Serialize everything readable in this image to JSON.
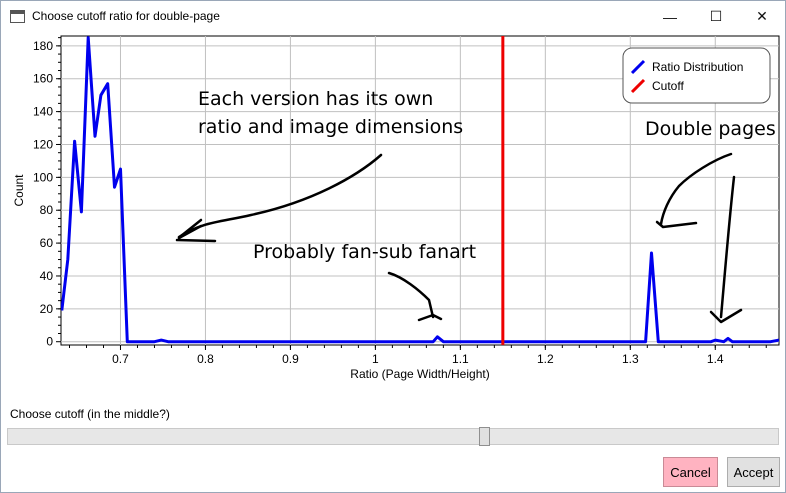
{
  "window": {
    "title": "Choose cutoff ratio for double-page",
    "icon": "window-icon",
    "controls": {
      "minimize": "—",
      "maximize": "☐",
      "close": "✕"
    }
  },
  "chart_data": {
    "type": "line",
    "xlabel": "Ratio (Page Width/Height)",
    "ylabel": "Count",
    "xlim": [
      0.63,
      1.475
    ],
    "ylim": [
      -2,
      186
    ],
    "xticks": [
      0.7,
      0.8,
      0.9,
      1.0,
      1.1,
      1.2,
      1.3,
      1.4
    ],
    "xtick_labels": [
      "0.7",
      "0.8",
      "0.9",
      "1",
      "1.1",
      "1.2",
      "1.3",
      "1.4"
    ],
    "yticks": [
      0,
      20,
      40,
      60,
      80,
      100,
      120,
      140,
      160,
      180
    ],
    "ytick_labels": [
      "0",
      "20",
      "40",
      "60",
      "80",
      "100",
      "120",
      "140",
      "160",
      "180"
    ],
    "grid": true,
    "legend_position": "top-right",
    "series": [
      {
        "name": "Ratio Distribution",
        "color": "#0000ee",
        "x": [
          0.631,
          0.638,
          0.646,
          0.654,
          0.662,
          0.67,
          0.677,
          0.685,
          0.693,
          0.7,
          0.708,
          0.716,
          0.74,
          0.748,
          0.756,
          1.06,
          1.068,
          1.073,
          1.08,
          1.31,
          1.318,
          1.325,
          1.333,
          1.38,
          1.395,
          1.4,
          1.41,
          1.415,
          1.42,
          1.43,
          1.465,
          1.475
        ],
        "y": [
          19,
          50,
          122,
          79,
          185,
          125,
          150,
          157,
          94,
          105,
          0,
          0,
          0,
          1,
          0,
          0,
          0,
          3,
          0,
          0,
          0,
          54,
          0,
          0,
          0,
          1,
          0,
          2,
          0,
          0,
          0,
          1
        ]
      },
      {
        "name": "Cutoff",
        "color": "#ee0000",
        "x": [
          1.15,
          1.15
        ],
        "y": [
          -2,
          186
        ]
      }
    ],
    "annotations": [
      {
        "text": "Each version has its own",
        "x": 0.89,
        "y": 140
      },
      {
        "text": "ratio and image dimensions",
        "x": 0.89,
        "y": 120
      },
      {
        "text": "Probably fan-sub fanart",
        "x": 0.94,
        "y": 45
      },
      {
        "text": "Double pages",
        "x": 1.4,
        "y": 118
      }
    ]
  },
  "controls": {
    "cutoff_label": "Choose cutoff (in the middle?)",
    "slider_value": 0.62,
    "cancel_label": "Cancel",
    "accept_label": "Accept"
  }
}
